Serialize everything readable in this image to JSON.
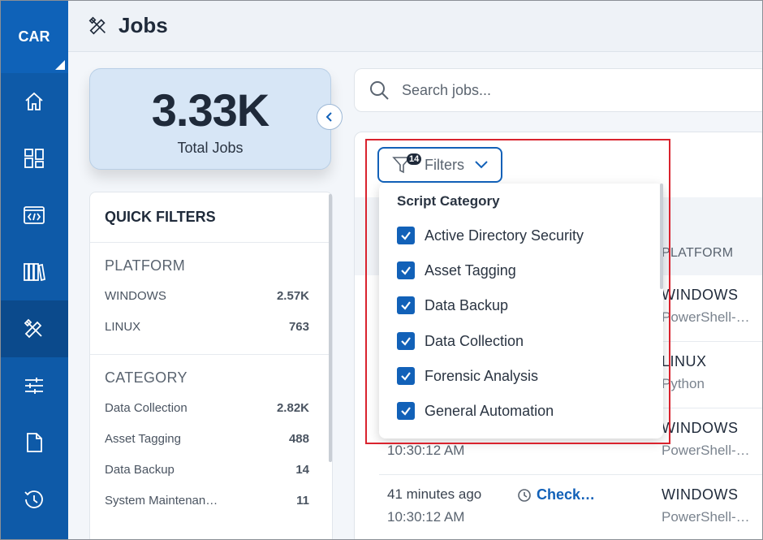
{
  "sidebar": {
    "logo": "CAR",
    "items": [
      {
        "icon": "home-icon"
      },
      {
        "icon": "dashboard-icon"
      },
      {
        "icon": "code-icon"
      },
      {
        "icon": "library-icon"
      },
      {
        "icon": "jobs-tools-icon",
        "active": true
      },
      {
        "icon": "sliders-icon"
      },
      {
        "icon": "document-icon"
      },
      {
        "icon": "history-icon"
      }
    ]
  },
  "header": {
    "title": "Jobs",
    "icon": "jobs-tools-icon"
  },
  "summary": {
    "total_value": "3.33K",
    "total_label": "Total Jobs"
  },
  "quick_filters": {
    "title": "QUICK FILTERS",
    "platform": {
      "heading": "PLATFORM",
      "items": [
        {
          "label": "WINDOWS",
          "count": "2.57K"
        },
        {
          "label": "LINUX",
          "count": "763"
        }
      ]
    },
    "category": {
      "heading": "CATEGORY",
      "items": [
        {
          "label": "Data Collection",
          "count": "2.82K"
        },
        {
          "label": "Asset Tagging",
          "count": "488"
        },
        {
          "label": "Data Backup",
          "count": "14"
        },
        {
          "label": "System Maintenan…",
          "count": "11"
        }
      ]
    }
  },
  "search": {
    "placeholder": "Search jobs..."
  },
  "filters_button": {
    "label": "Filters",
    "badge": "14"
  },
  "dropdown": {
    "title": "Script Category",
    "options": [
      {
        "label": "Active Directory Security",
        "checked": true
      },
      {
        "label": "Asset Tagging",
        "checked": true
      },
      {
        "label": "Data Backup",
        "checked": true
      },
      {
        "label": "Data Collection",
        "checked": true
      },
      {
        "label": "Forensic Analysis",
        "checked": true
      },
      {
        "label": "General Automation",
        "checked": true
      }
    ]
  },
  "table": {
    "platform_header": "PLATFORM",
    "rows": [
      {
        "time_ago": "",
        "time": "",
        "script": "",
        "platform": "WINDOWS",
        "type": "PowerShell-…"
      },
      {
        "time_ago": "",
        "time": "",
        "script": "",
        "platform": "LINUX",
        "type": "Python"
      },
      {
        "time_ago": "",
        "time": "10:30:12 AM",
        "script": "",
        "platform": "WINDOWS",
        "type": "PowerShell-…"
      },
      {
        "time_ago": "41 minutes ago",
        "time": "10:30:12 AM",
        "script": "Check…",
        "platform": "WINDOWS",
        "type": "PowerShell-…"
      }
    ]
  },
  "colors": {
    "sidebar": "#0e5aa8",
    "accent": "#1261b8",
    "highlight": "#d9232e"
  }
}
